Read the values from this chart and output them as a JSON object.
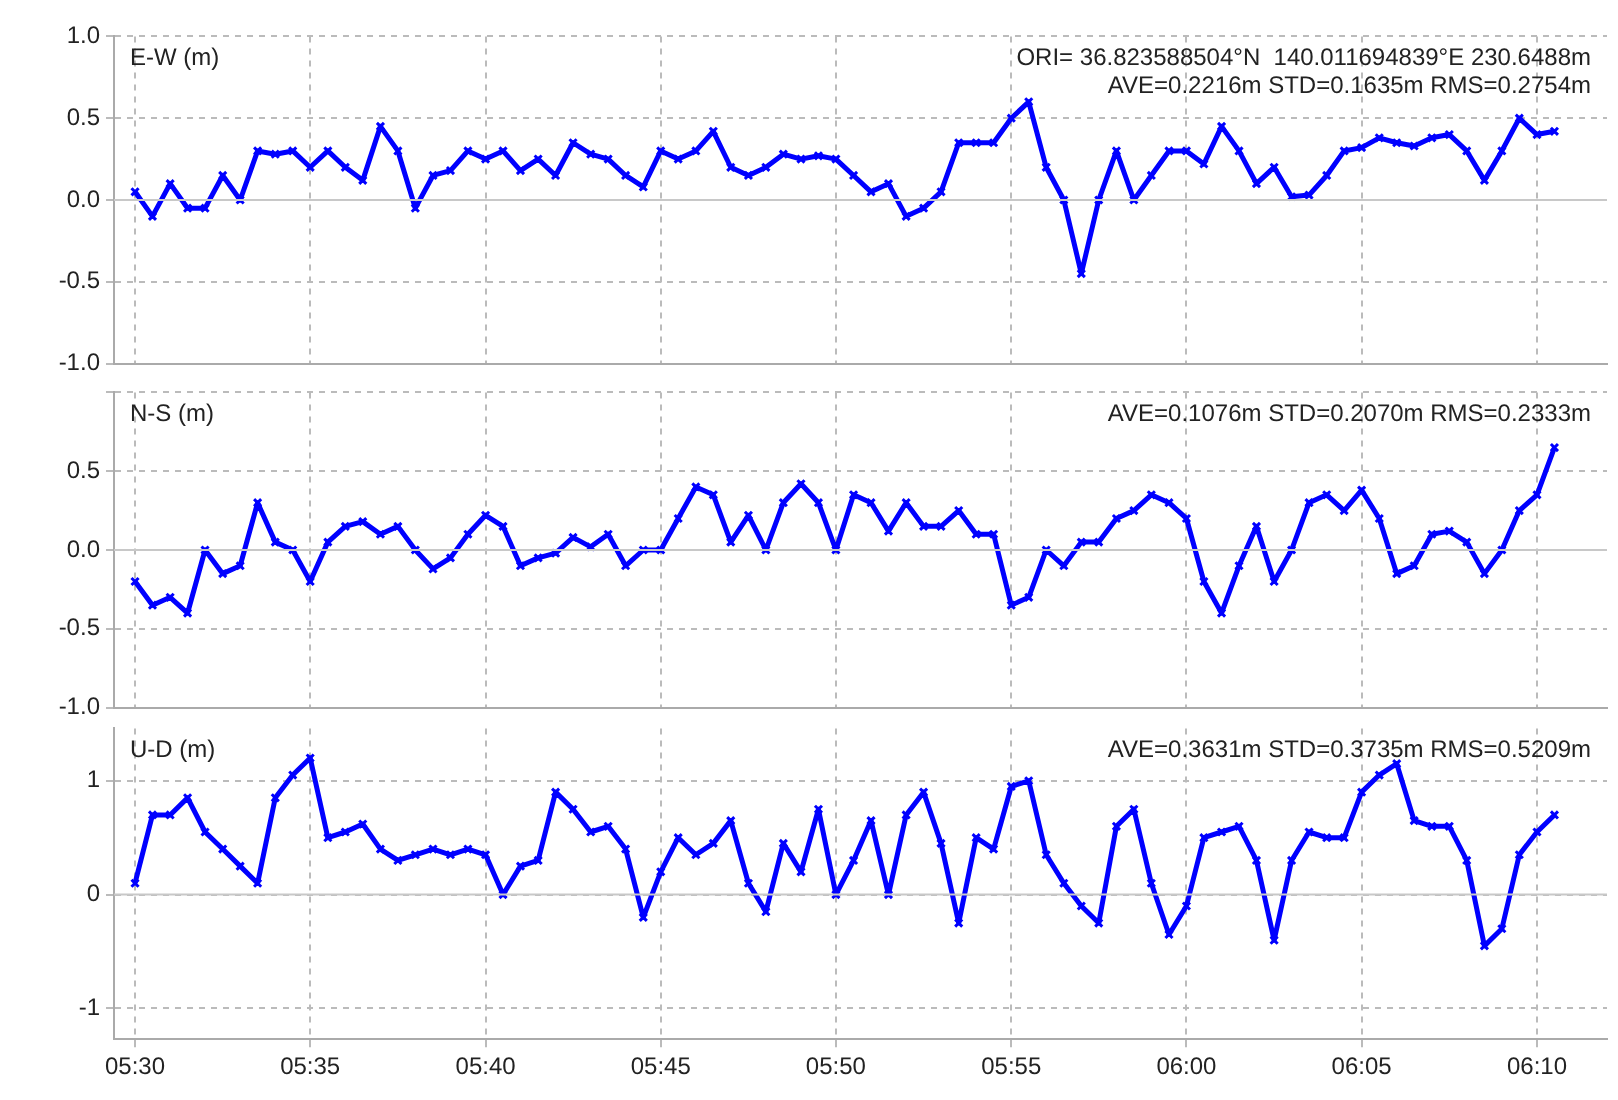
{
  "chart_data": [
    {
      "type": "line",
      "ylabel": "E-W (m)",
      "annotations": [
        "ORI= 36.823588504°N  140.011694839°E 230.6488m",
        "AVE=0.2216m STD=0.1635m RMS=0.2754m"
      ],
      "marker": "cross",
      "grid": true,
      "tick_labels": "y",
      "x": [
        5.5,
        5.5083,
        5.5167,
        5.525,
        5.5333,
        5.5417,
        5.55,
        5.5583,
        5.5667,
        5.575,
        5.5833,
        5.5917,
        5.6,
        5.6083,
        5.6167,
        5.625,
        5.6333,
        5.6417,
        5.65,
        5.6583,
        5.6667,
        5.675,
        5.6833,
        5.6917,
        5.7,
        5.7083,
        5.7167,
        5.725,
        5.7333,
        5.7417,
        5.75,
        5.7583,
        5.7667,
        5.775,
        5.7833,
        5.7917,
        5.8,
        5.8083,
        5.8167,
        5.825,
        5.8333,
        5.8417,
        5.85,
        5.8583,
        5.8667,
        5.875,
        5.8833,
        5.8917,
        5.9,
        5.9083,
        5.9167,
        5.925,
        5.9333,
        5.9417,
        5.95,
        5.9583,
        5.9667,
        5.975,
        5.9833,
        5.9917,
        6.0,
        6.0083,
        6.0167,
        6.025,
        6.0333,
        6.0417,
        6.05,
        6.0583,
        6.0667,
        6.075,
        6.0833,
        6.0917,
        6.1,
        6.1083,
        6.1167,
        6.125,
        6.1333,
        6.1417,
        6.15,
        6.1583,
        6.1667,
        6.175
      ],
      "series": [
        {
          "color": "#0000ff",
          "values": [
            0.05,
            -0.1,
            0.1,
            -0.05,
            -0.05,
            0.15,
            0.0,
            0.3,
            0.28,
            0.3,
            0.2,
            0.3,
            0.2,
            0.12,
            0.45,
            0.3,
            -0.05,
            0.15,
            0.18,
            0.3,
            0.25,
            0.3,
            0.18,
            0.25,
            0.15,
            0.35,
            0.28,
            0.25,
            0.15,
            0.08,
            0.3,
            0.25,
            0.3,
            0.42,
            0.2,
            0.15,
            0.2,
            0.28,
            0.25,
            0.27,
            0.25,
            0.15,
            0.05,
            0.1,
            -0.1,
            -0.05,
            0.05,
            0.35,
            0.35,
            0.35,
            0.5,
            0.6,
            0.2,
            0.0,
            -0.45,
            0.0,
            0.3,
            0.0,
            0.15,
            0.3,
            0.3,
            0.22,
            0.45,
            0.3,
            0.1,
            0.2,
            0.02,
            0.03,
            0.15,
            0.3,
            0.32,
            0.38,
            0.35,
            0.33,
            0.38,
            0.4,
            0.3,
            0.12,
            0.3,
            0.5,
            0.4,
            0.42
          ]
        }
      ],
      "xlim": [
        5.49,
        6.2
      ],
      "xticks": [
        {
          "value": 5.5,
          "label": null
        },
        {
          "value": 5.5833,
          "label": null
        },
        {
          "value": 5.6667,
          "label": null
        },
        {
          "value": 5.75,
          "label": null
        },
        {
          "value": 5.8333,
          "label": null
        },
        {
          "value": 5.9167,
          "label": null
        },
        {
          "value": 6.0,
          "label": null
        },
        {
          "value": 6.0833,
          "label": null
        },
        {
          "value": 6.1667,
          "label": null
        }
      ],
      "ylim": [
        -1,
        1
      ],
      "yticks": [
        {
          "value": 1,
          "label": "1.0"
        },
        0.5,
        {
          "value": 0,
          "label": "0.0"
        },
        -0.5,
        {
          "value": -1,
          "label": "-1.0"
        }
      ],
      "ref_lines": [
        {
          "axis": "y",
          "value": 0,
          "color": "#c8c8c8"
        }
      ]
    },
    {
      "type": "line",
      "ylabel": "N-S (m)",
      "annotations": [
        "AVE=0.1076m STD=0.2070m RMS=0.2333m"
      ],
      "marker": "cross",
      "grid": true,
      "tick_labels": "y",
      "x": [
        5.5,
        5.5083,
        5.5167,
        5.525,
        5.5333,
        5.5417,
        5.55,
        5.5583,
        5.5667,
        5.575,
        5.5833,
        5.5917,
        5.6,
        5.6083,
        5.6167,
        5.625,
        5.6333,
        5.6417,
        5.65,
        5.6583,
        5.6667,
        5.675,
        5.6833,
        5.6917,
        5.7,
        5.7083,
        5.7167,
        5.725,
        5.7333,
        5.7417,
        5.75,
        5.7583,
        5.7667,
        5.775,
        5.7833,
        5.7917,
        5.8,
        5.8083,
        5.8167,
        5.825,
        5.8333,
        5.8417,
        5.85,
        5.8583,
        5.8667,
        5.875,
        5.8833,
        5.8917,
        5.9,
        5.9083,
        5.9167,
        5.925,
        5.9333,
        5.9417,
        5.95,
        5.9583,
        5.9667,
        5.975,
        5.9833,
        5.9917,
        6.0,
        6.0083,
        6.0167,
        6.025,
        6.0333,
        6.0417,
        6.05,
        6.0583,
        6.0667,
        6.075,
        6.0833,
        6.0917,
        6.1,
        6.1083,
        6.1167,
        6.125,
        6.1333,
        6.1417,
        6.15,
        6.1583,
        6.1667,
        6.175
      ],
      "series": [
        {
          "color": "#0000ff",
          "values": [
            -0.2,
            -0.35,
            -0.3,
            -0.4,
            0.0,
            -0.15,
            -0.1,
            0.3,
            0.05,
            0.0,
            -0.2,
            0.05,
            0.15,
            0.18,
            0.1,
            0.15,
            0.0,
            -0.12,
            -0.05,
            0.1,
            0.22,
            0.15,
            -0.1,
            -0.05,
            -0.02,
            0.08,
            0.02,
            0.1,
            -0.1,
            0.0,
            0.0,
            0.2,
            0.4,
            0.35,
            0.05,
            0.22,
            0.0,
            0.3,
            0.42,
            0.3,
            0.0,
            0.35,
            0.3,
            0.12,
            0.3,
            0.15,
            0.15,
            0.25,
            0.1,
            0.1,
            -0.35,
            -0.3,
            0.0,
            -0.1,
            0.05,
            0.05,
            0.2,
            0.25,
            0.35,
            0.3,
            0.2,
            -0.2,
            -0.4,
            -0.1,
            0.15,
            -0.2,
            0.0,
            0.3,
            0.35,
            0.25,
            0.38,
            0.2,
            -0.15,
            -0.1,
            0.1,
            0.12,
            0.05,
            -0.15,
            0.0,
            0.25,
            0.35,
            0.65
          ]
        }
      ],
      "xlim": [
        5.49,
        6.2
      ],
      "xticks": [
        {
          "value": 5.5,
          "label": null
        },
        {
          "value": 5.5833,
          "label": null
        },
        {
          "value": 5.6667,
          "label": null
        },
        {
          "value": 5.75,
          "label": null
        },
        {
          "value": 5.8333,
          "label": null
        },
        {
          "value": 5.9167,
          "label": null
        },
        {
          "value": 6.0,
          "label": null
        },
        {
          "value": 6.0833,
          "label": null
        },
        {
          "value": 6.1667,
          "label": null
        }
      ],
      "ylim": [
        -1,
        1
      ],
      "yticks": [
        {
          "value": 1,
          "label": null
        },
        0.5,
        {
          "value": 0,
          "label": "0.0"
        },
        -0.5,
        {
          "value": -1,
          "label": "-1.0"
        }
      ],
      "ref_lines": [
        {
          "axis": "y",
          "value": 0,
          "color": "#c8c8c8"
        }
      ]
    },
    {
      "type": "line",
      "ylabel": "U-D (m)",
      "annotations": [
        "AVE=0.3631m STD=0.3735m RMS=0.5209m"
      ],
      "marker": "cross",
      "grid": true,
      "x": [
        5.5,
        5.5083,
        5.5167,
        5.525,
        5.5333,
        5.5417,
        5.55,
        5.5583,
        5.5667,
        5.575,
        5.5833,
        5.5917,
        5.6,
        5.6083,
        5.6167,
        5.625,
        5.6333,
        5.6417,
        5.65,
        5.6583,
        5.6667,
        5.675,
        5.6833,
        5.6917,
        5.7,
        5.7083,
        5.7167,
        5.725,
        5.7333,
        5.7417,
        5.75,
        5.7583,
        5.7667,
        5.775,
        5.7833,
        5.7917,
        5.8,
        5.8083,
        5.8167,
        5.825,
        5.8333,
        5.8417,
        5.85,
        5.8583,
        5.8667,
        5.875,
        5.8833,
        5.8917,
        5.9,
        5.9083,
        5.9167,
        5.925,
        5.9333,
        5.9417,
        5.95,
        5.9583,
        5.9667,
        5.975,
        5.9833,
        5.9917,
        6.0,
        6.0083,
        6.0167,
        6.025,
        6.0333,
        6.0417,
        6.05,
        6.0583,
        6.0667,
        6.075,
        6.0833,
        6.0917,
        6.1,
        6.1083,
        6.1167,
        6.125,
        6.1333,
        6.1417,
        6.15,
        6.1583,
        6.1667,
        6.175
      ],
      "series": [
        {
          "color": "#0000ff",
          "values": [
            0.1,
            0.7,
            0.7,
            0.85,
            0.55,
            0.4,
            0.25,
            0.1,
            0.85,
            1.05,
            1.2,
            0.5,
            0.55,
            0.62,
            0.4,
            0.3,
            0.35,
            0.4,
            0.35,
            0.4,
            0.35,
            0.0,
            0.25,
            0.3,
            0.9,
            0.75,
            0.55,
            0.6,
            0.4,
            -0.2,
            0.2,
            0.5,
            0.35,
            0.45,
            0.65,
            0.1,
            -0.15,
            0.45,
            0.2,
            0.75,
            0.0,
            0.3,
            0.65,
            0.0,
            0.7,
            0.9,
            0.45,
            -0.25,
            0.5,
            0.4,
            0.95,
            1.0,
            0.35,
            0.1,
            -0.1,
            -0.25,
            0.6,
            0.75,
            0.1,
            -0.35,
            -0.1,
            0.5,
            0.55,
            0.6,
            0.3,
            -0.4,
            0.3,
            0.55,
            0.5,
            0.5,
            0.9,
            1.05,
            1.15,
            0.65,
            0.6,
            0.6,
            0.3,
            -0.45,
            -0.3,
            0.35,
            0.55,
            0.7
          ]
        }
      ],
      "xlim": [
        5.49,
        6.2
      ],
      "xticks": [
        {
          "value": 5.5,
          "label": "05:30"
        },
        {
          "value": 5.5833,
          "label": "05:35"
        },
        {
          "value": 5.6667,
          "label": "05:40"
        },
        {
          "value": 5.75,
          "label": "05:45"
        },
        {
          "value": 5.8333,
          "label": "05:50"
        },
        {
          "value": 5.9167,
          "label": "05:55"
        },
        {
          "value": 6.0,
          "label": "06:00"
        },
        {
          "value": 6.0833,
          "label": "06:05"
        },
        {
          "value": 6.1667,
          "label": "06:10"
        }
      ],
      "ylim": [
        -1.27,
        1.46
      ],
      "yticks": [
        1,
        0,
        -1
      ],
      "ref_lines": [
        {
          "axis": "y",
          "value": 0,
          "color": "#c8c8c8"
        }
      ]
    }
  ]
}
